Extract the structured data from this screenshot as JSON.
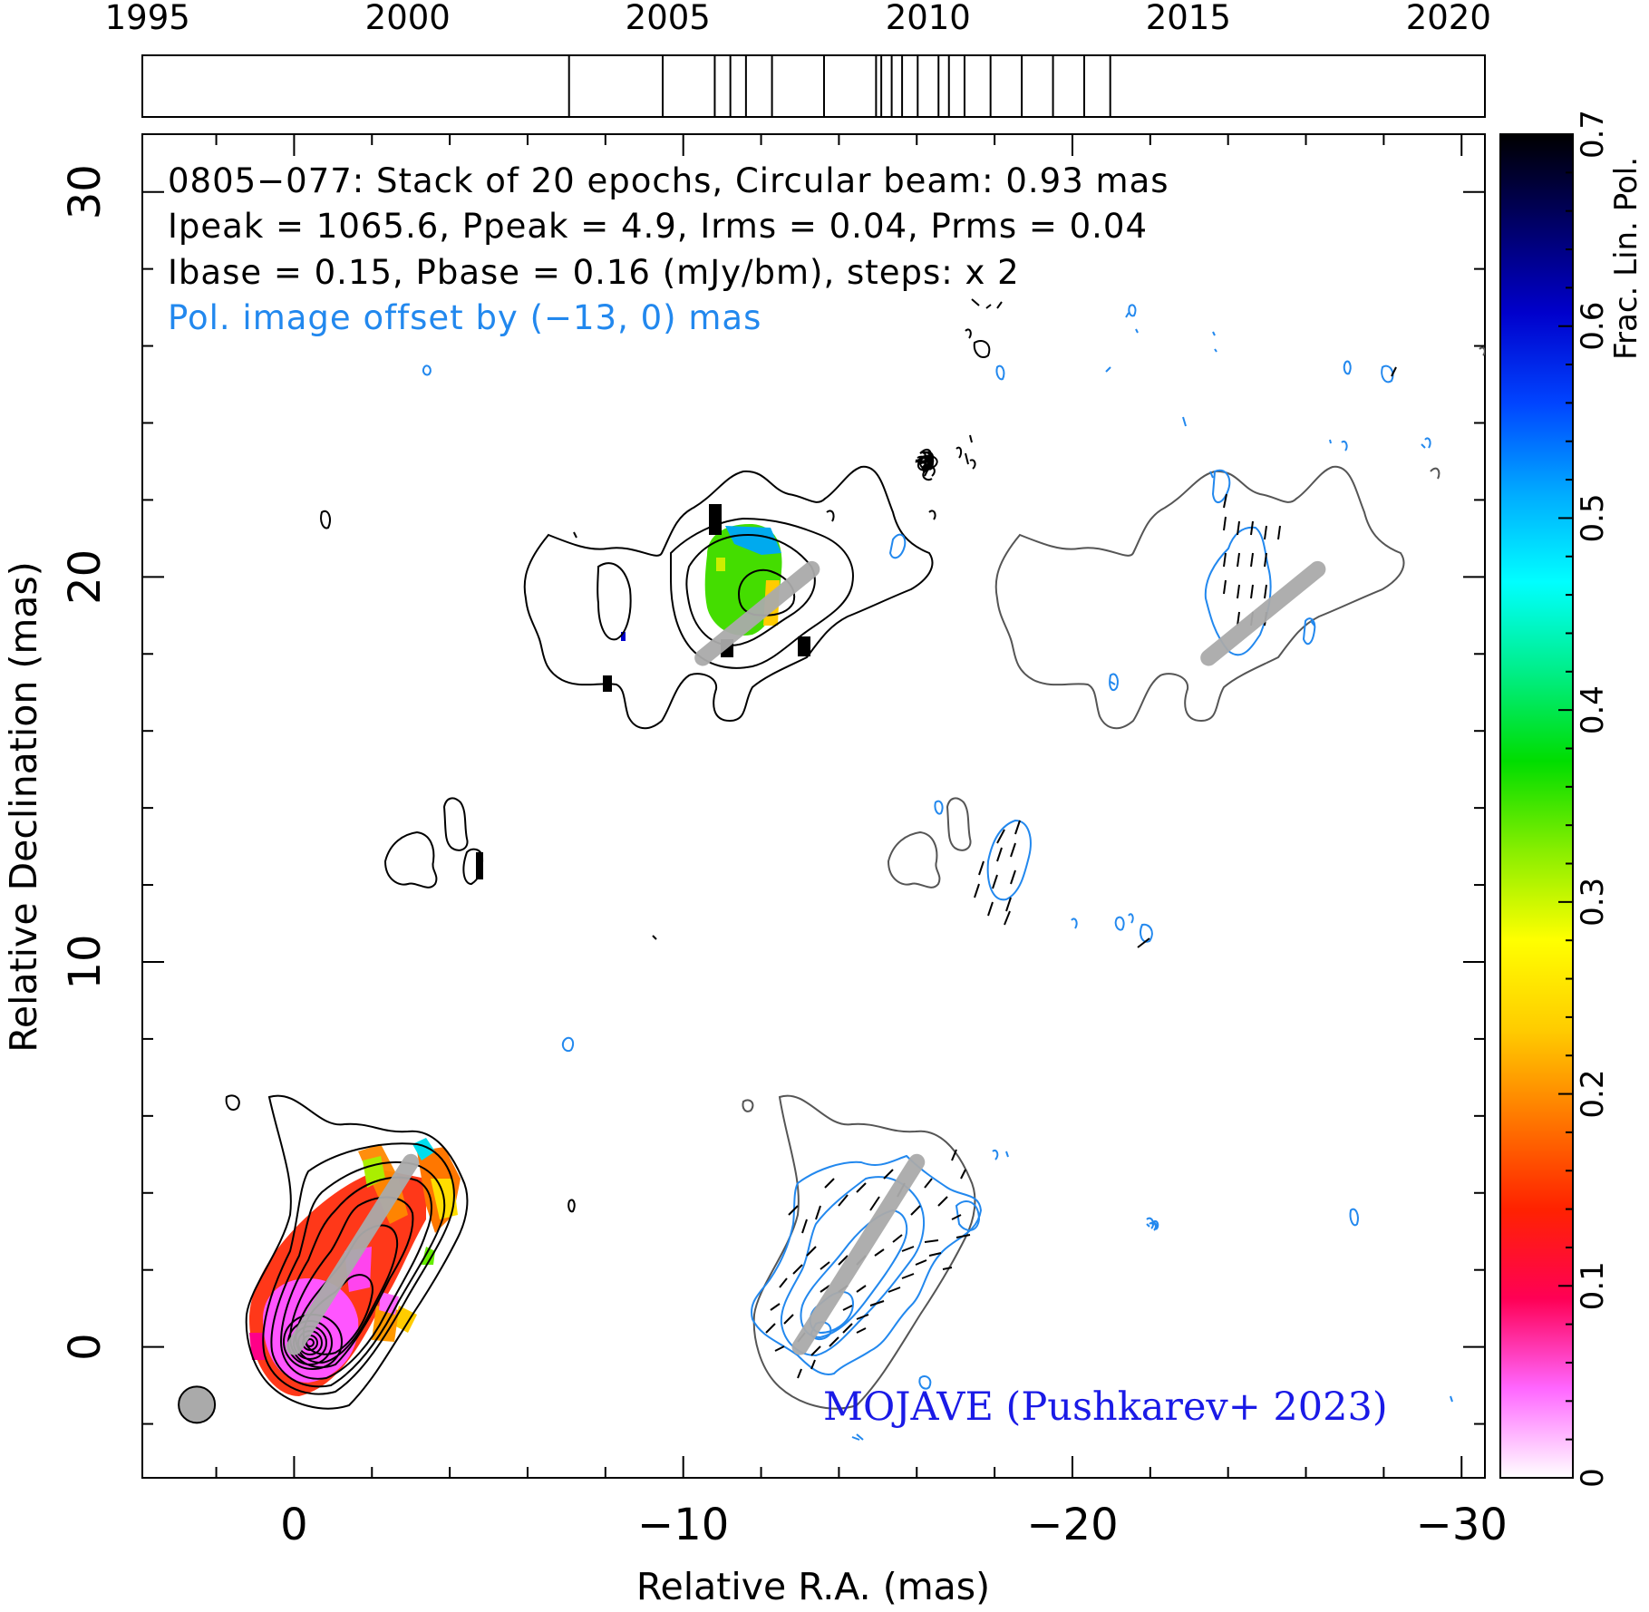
{
  "chart_data": [
    {
      "type": "timeline",
      "tick_labels": [
        "1995",
        "2000",
        "2005",
        "2010",
        "2015",
        "2020"
      ],
      "xlim": [
        1994.9,
        2020.7
      ],
      "epochs": [
        2003.1,
        2004.9,
        2005.9,
        2006.2,
        2006.5,
        2007.0,
        2008.0,
        2009.0,
        2009.1,
        2009.3,
        2009.5,
        2009.8,
        2010.2,
        2010.4,
        2010.7,
        2011.2,
        2011.8,
        2012.4,
        2013.0,
        2013.5
      ]
    },
    {
      "type": "contour_map",
      "xlabel": "Relative R.A. (mas)",
      "ylabel": "Relative Declination (mas)",
      "xlim": [
        3.9,
        -30.6
      ],
      "ylim": [
        -3.4,
        31.5
      ],
      "x_ticks": [
        0,
        -10,
        -20,
        -30
      ],
      "y_ticks": [
        0,
        10,
        20,
        30
      ],
      "annotation_lines": [
        "0805−077: Stack of 20 epochs, Circular beam: 0.93 mas",
        "Ipeak = 1065.6, Ppeak = 4.9, Irms = 0.04, Prms = 0.04",
        "Ibase = 0.15, Pbase = 0.16 (mJy/bm), steps: x 2"
      ],
      "pol_offset_note": "Pol. image offset by (−13, 0) mas",
      "credit": "MOJAVE (Pushkarev+ 2023)",
      "beam": {
        "x": 2.5,
        "y": -1.5,
        "diameter_mas": 0.93
      },
      "ridgelines": [
        {
          "from": [
            0,
            0
          ],
          "to": [
            -3.0,
            4.8
          ]
        },
        {
          "from": [
            -10.5,
            17.9
          ],
          "to": [
            -13.3,
            20.2
          ]
        },
        {
          "from": [
            -13.0,
            0
          ],
          "to": [
            -16.0,
            4.8
          ]
        },
        {
          "from": [
            -23.5,
            17.9
          ],
          "to": [
            -26.3,
            20.2
          ]
        }
      ],
      "colors": {
        "stokes_i_contours": "#000000",
        "pol_contours": "#2288ee",
        "outer_contour_copy": "#555555",
        "ridgeline": "#aaaaaa",
        "beam_fill": "#aaaaaa"
      }
    },
    {
      "type": "colorbar",
      "label": "Frac. Lin. Pol.",
      "range": [
        0,
        0.7
      ],
      "tick_labels": [
        "0",
        "0.1",
        "0.2",
        "0.3",
        "0.4",
        "0.5",
        "0.6",
        "0.7"
      ],
      "colormap": [
        "#ffffff",
        "#ff66ff",
        "#ff0055",
        "#ff2200",
        "#ff7700",
        "#ffcc00",
        "#ffff00",
        "#88ee00",
        "#00dd00",
        "#00ee88",
        "#00ffff",
        "#00aaff",
        "#0044ff",
        "#0000cc",
        "#000066",
        "#000000"
      ]
    }
  ]
}
